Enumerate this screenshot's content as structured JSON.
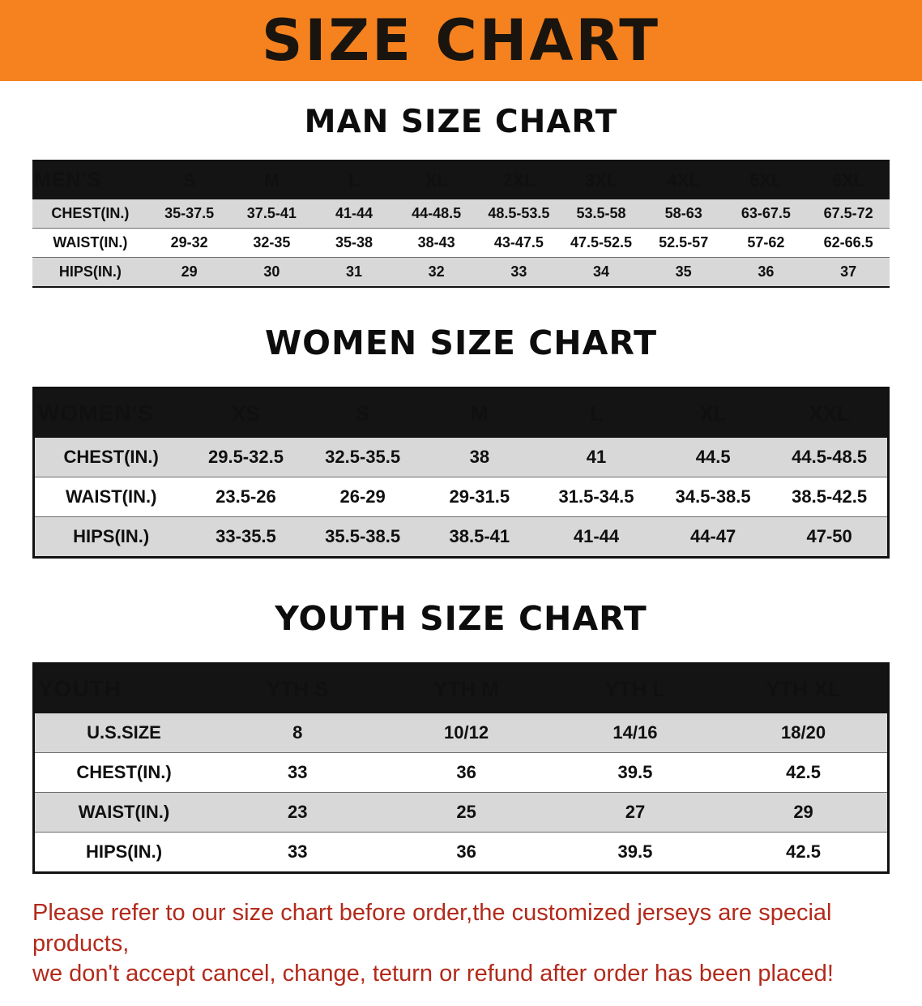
{
  "banner": {
    "title": "SIZE CHART"
  },
  "men": {
    "heading": "MAN SIZE CHART",
    "table": {
      "header": [
        "MEN'S",
        "S",
        "M",
        "L",
        "XL",
        "2XL",
        "3XL",
        "4XL",
        "5XL",
        "6XL"
      ],
      "rows": [
        [
          "CHEST(IN.)",
          "35-37.5",
          "37.5-41",
          "41-44",
          "44-48.5",
          "48.5-53.5",
          "53.5-58",
          "58-63",
          "63-67.5",
          "67.5-72"
        ],
        [
          "WAIST(IN.)",
          "29-32",
          "32-35",
          "35-38",
          "38-43",
          "43-47.5",
          "47.5-52.5",
          "52.5-57",
          "57-62",
          "62-66.5"
        ],
        [
          "HIPS(IN.)",
          "29",
          "30",
          "31",
          "32",
          "33",
          "34",
          "35",
          "36",
          "37"
        ]
      ]
    }
  },
  "women": {
    "heading": "WOMEN SIZE CHART",
    "table": {
      "header": [
        "WOMEN'S",
        "XS",
        "S",
        "M",
        "L",
        "XL",
        "XXL"
      ],
      "rows": [
        [
          "CHEST(IN.)",
          "29.5-32.5",
          "32.5-35.5",
          "38",
          "41",
          "44.5",
          "44.5-48.5"
        ],
        [
          "WAIST(IN.)",
          "23.5-26",
          "26-29",
          "29-31.5",
          "31.5-34.5",
          "34.5-38.5",
          "38.5-42.5"
        ],
        [
          "HIPS(IN.)",
          "33-35.5",
          "35.5-38.5",
          "38.5-41",
          "41-44",
          "44-47",
          "47-50"
        ]
      ]
    }
  },
  "youth": {
    "heading": "YOUTH SIZE CHART",
    "table": {
      "header": [
        "YOUTH",
        "YTH S",
        "YTH M",
        "YTH L",
        "YTH XL"
      ],
      "rows": [
        [
          "U.S.SIZE",
          "8",
          "10/12",
          "14/16",
          "18/20"
        ],
        [
          "CHEST(IN.)",
          "33",
          "36",
          "39.5",
          "42.5"
        ],
        [
          "WAIST(IN.)",
          "23",
          "25",
          "27",
          "29"
        ],
        [
          "HIPS(IN.)",
          "33",
          "36",
          "39.5",
          "42.5"
        ]
      ]
    }
  },
  "disclaimer": {
    "line1": "Please refer to our size chart before order,the customized jerseys are special products,",
    "line2": "we don't accept cancel, change, teturn or refund after order has been placed!"
  },
  "colors": {
    "banner_orange": "#f5821f",
    "header_black": "#141414",
    "row_gray": "#d8d8d8",
    "disclaimer_red": "#b22a1b"
  }
}
